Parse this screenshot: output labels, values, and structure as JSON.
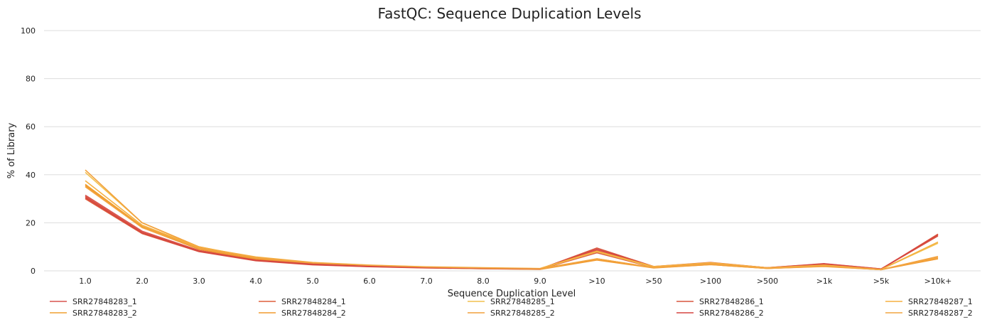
{
  "chart_data": {
    "type": "line",
    "title": "FastQC: Sequence Duplication Levels",
    "xlabel": "Sequence Duplication Level",
    "ylabel": "% of Library",
    "ylim": [
      0,
      100
    ],
    "yticks": [
      0,
      20,
      40,
      60,
      80,
      100
    ],
    "grid": true,
    "legend_position": "bottom",
    "categories": [
      "1.0",
      "2.0",
      "3.0",
      "4.0",
      "5.0",
      "6.0",
      "7.0",
      "8.0",
      "9.0",
      ">10",
      ">50",
      ">100",
      ">500",
      ">1k",
      ">5k",
      ">10k+"
    ],
    "series": [
      {
        "name": "SRR27848283_1",
        "color": "#d9534f",
        "values": [
          31.5,
          16.5,
          8.5,
          4.8,
          3.0,
          2.0,
          1.4,
          1.1,
          0.8,
          8.5,
          1.6,
          3.0,
          1.2,
          2.6,
          0.7,
          15.0
        ]
      },
      {
        "name": "SRR27848283_2",
        "color": "#f0a030",
        "values": [
          36.0,
          18.5,
          9.5,
          5.2,
          3.0,
          2.0,
          1.4,
          1.0,
          0.7,
          5.0,
          1.3,
          2.6,
          1.0,
          2.0,
          0.5,
          5.5
        ]
      },
      {
        "name": "SRR27848284_1",
        "color": "#dd5e3c",
        "values": [
          30.0,
          15.5,
          8.0,
          4.2,
          2.5,
          1.7,
          1.2,
          0.9,
          0.7,
          7.5,
          1.4,
          3.2,
          1.2,
          2.8,
          0.7,
          15.3
        ]
      },
      {
        "name": "SRR27848284_2",
        "color": "#f29a2e",
        "values": [
          35.5,
          18.0,
          9.0,
          4.8,
          2.8,
          1.9,
          1.3,
          0.9,
          0.6,
          4.5,
          1.2,
          2.6,
          1.0,
          1.9,
          0.5,
          5.0
        ]
      },
      {
        "name": "SRR27848285_1",
        "color": "#f2c14e",
        "values": [
          41.0,
          20.0,
          10.0,
          5.5,
          3.2,
          2.1,
          1.5,
          1.1,
          0.8,
          8.0,
          1.5,
          3.0,
          1.1,
          2.2,
          0.6,
          11.5
        ]
      },
      {
        "name": "SRR27848285_2",
        "color": "#f2a03c",
        "values": [
          42.0,
          20.0,
          10.0,
          5.3,
          3.0,
          2.0,
          1.4,
          1.0,
          0.7,
          5.0,
          1.3,
          2.8,
          1.0,
          1.8,
          0.5,
          6.0
        ]
      },
      {
        "name": "SRR27848286_1",
        "color": "#d8573f",
        "values": [
          31.0,
          16.0,
          8.3,
          4.5,
          2.8,
          1.9,
          1.3,
          1.0,
          0.8,
          9.5,
          1.8,
          3.5,
          1.3,
          3.0,
          0.8,
          14.5
        ]
      },
      {
        "name": "SRR27848286_2",
        "color": "#d64541",
        "values": [
          30.5,
          15.8,
          8.1,
          4.3,
          2.6,
          1.8,
          1.3,
          1.0,
          0.8,
          9.0,
          1.7,
          3.3,
          1.3,
          2.9,
          0.8,
          15.0
        ]
      },
      {
        "name": "SRR27848287_1",
        "color": "#f5b041",
        "values": [
          37.5,
          19.0,
          9.8,
          5.8,
          3.5,
          2.4,
          1.7,
          1.3,
          1.0,
          8.2,
          1.8,
          3.4,
          1.3,
          2.4,
          0.6,
          12.0
        ]
      },
      {
        "name": "SRR27848287_2",
        "color": "#f2a541",
        "values": [
          35.0,
          18.0,
          9.5,
          5.5,
          3.4,
          2.3,
          1.6,
          1.2,
          0.9,
          5.0,
          1.4,
          3.0,
          1.1,
          2.0,
          0.5,
          5.5
        ]
      }
    ]
  }
}
